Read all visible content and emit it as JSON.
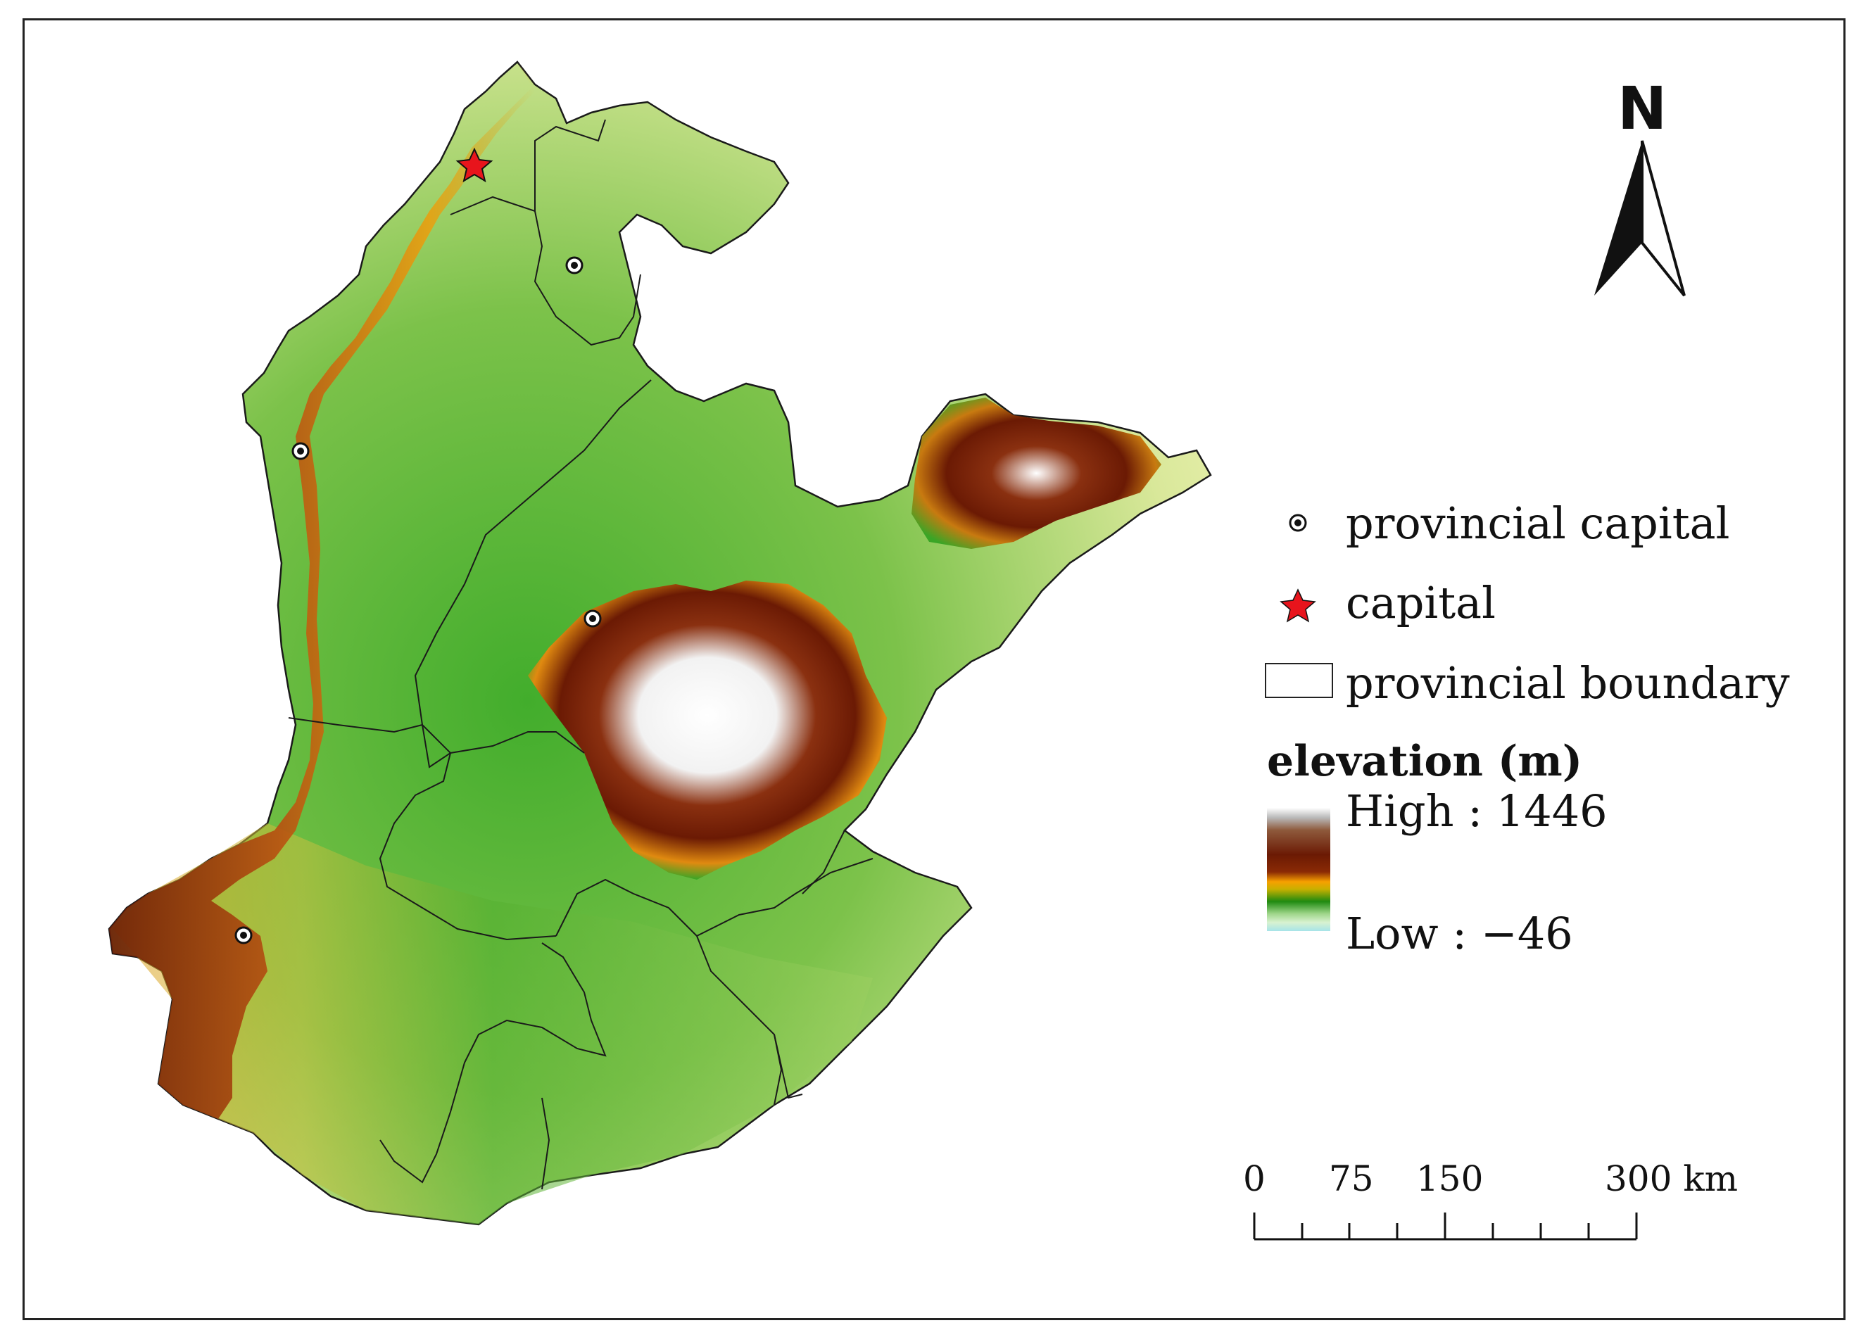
{
  "map": {
    "north_arrow": {
      "letter": "N"
    },
    "legend": {
      "items": [
        {
          "icon": "dot-circle-icon",
          "label": "provincial capital"
        },
        {
          "icon": "red-star-icon",
          "label": "capital",
          "color": "#e8141c"
        },
        {
          "icon": "hollow-rectangle-icon",
          "label": "provincial boundary"
        }
      ],
      "elevation": {
        "title": "elevation (m)",
        "high_label": "High : 1446",
        "low_label": "Low : −46",
        "high_value": 1446,
        "low_value": -46,
        "ramp_colors": [
          "#ffffff",
          "#6b1a04",
          "#f7a000",
          "#1f8a10",
          "#d8f2d0",
          "#a7e4e8"
        ]
      }
    },
    "scale_bar": {
      "labels": [
        "0",
        "75",
        "150",
        "300 km"
      ],
      "unit": "km"
    },
    "colors": {
      "lowland": "#eef2b0",
      "plain_green": "#3aa526",
      "foothill": "#e89c10",
      "mountain": "#7a2206",
      "peak": "#ffffff",
      "boundary": "#1a1a1a"
    }
  }
}
